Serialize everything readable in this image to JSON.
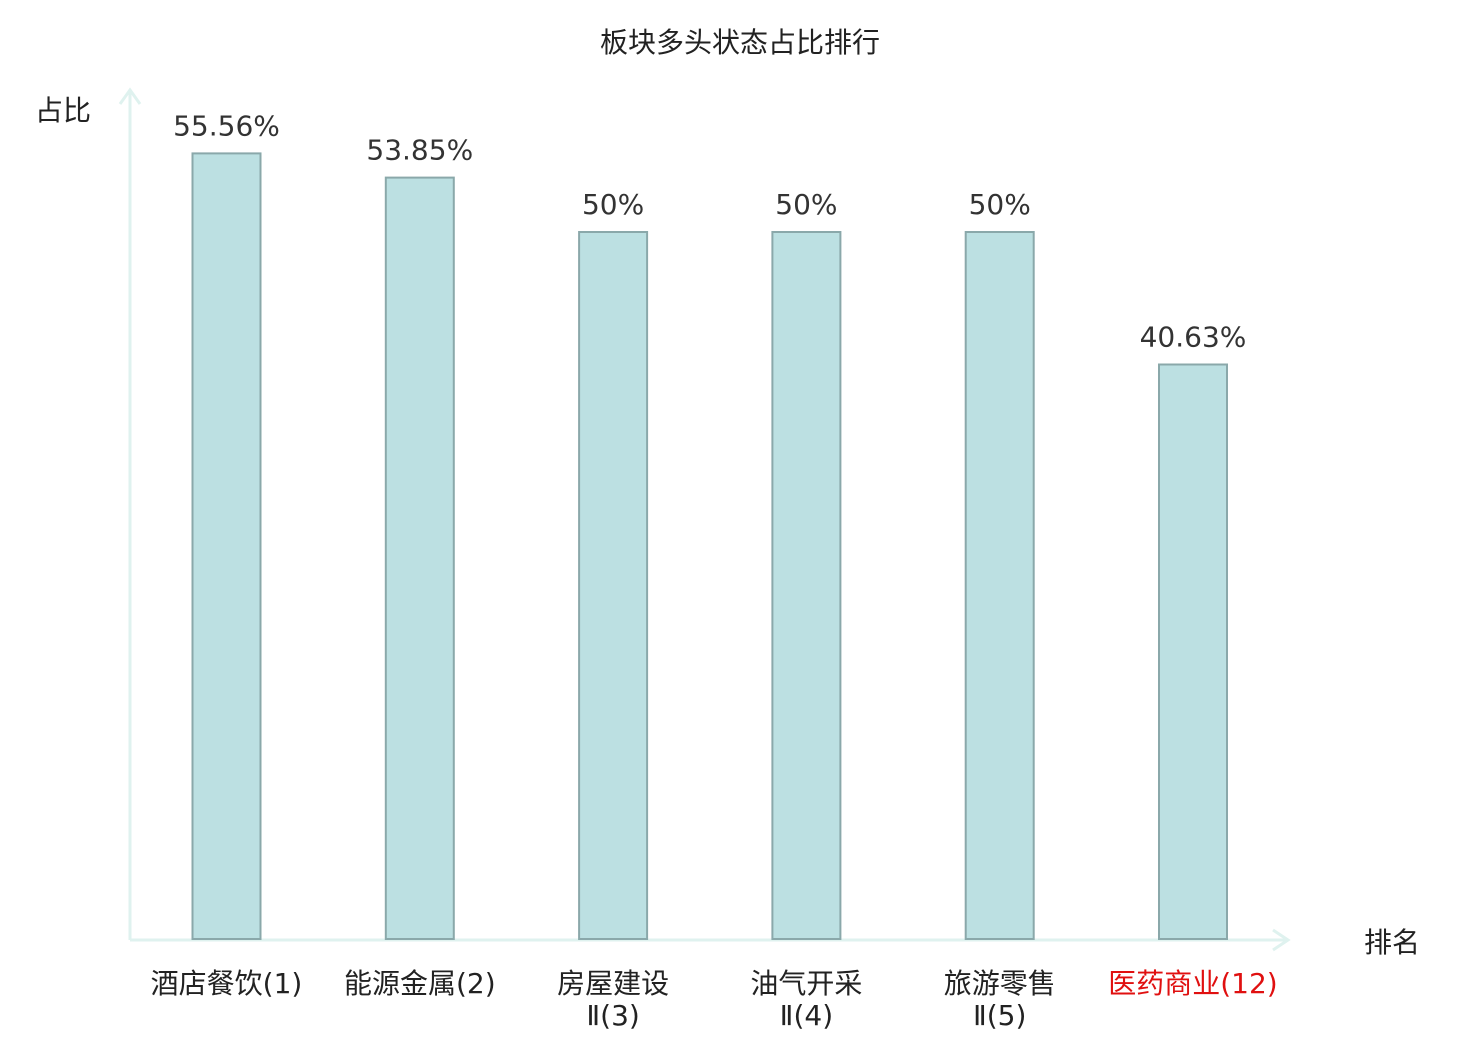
{
  "chart_data": {
    "type": "bar",
    "title": "板块多头状态占比排行",
    "ylabel": "占比",
    "xlabel": "排名",
    "categories": [
      [
        "酒店餐饮(1)"
      ],
      [
        "能源金属(2)"
      ],
      [
        "房屋建设",
        "Ⅱ(3)"
      ],
      [
        "油气开采",
        "Ⅱ(4)"
      ],
      [
        "旅游零售",
        "Ⅱ(5)"
      ],
      [
        "医药商业(12)"
      ]
    ],
    "values": [
      55.56,
      53.85,
      50,
      50,
      50,
      40.63
    ],
    "value_labels": [
      "55.56%",
      "53.85%",
      "50%",
      "50%",
      "50%",
      "40.63%"
    ],
    "highlight_index": 5,
    "ylim": [
      0,
      58
    ],
    "grid": false,
    "colors": {
      "bar_fill": "#bce0e2",
      "bar_stroke": "#8aa8aa",
      "axis": "#dff2ef",
      "text": "#222222",
      "value_text": "#333333",
      "highlight_text": "#e01010"
    }
  }
}
